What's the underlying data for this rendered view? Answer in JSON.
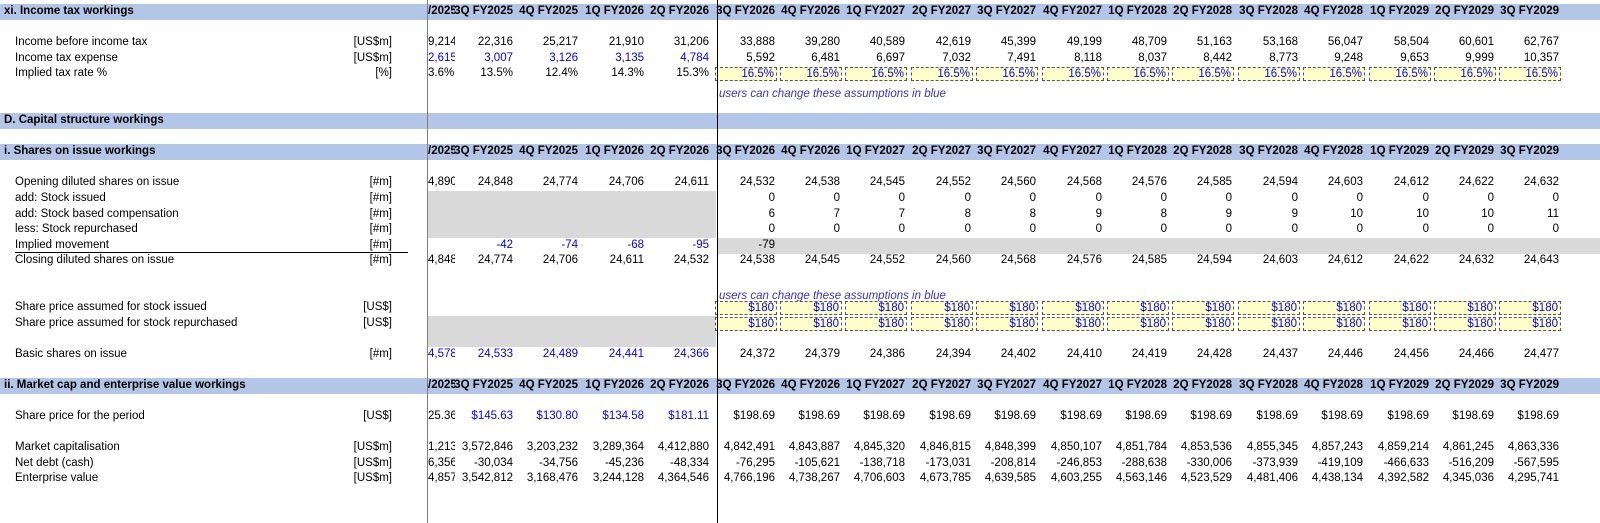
{
  "columns": [
    "3Q FY2025",
    "4Q FY2025",
    "1Q FY2026",
    "2Q FY2026",
    "3Q FY2026",
    "4Q FY2026",
    "1Q FY2027",
    "2Q FY2027",
    "3Q FY2027",
    "4Q FY2027",
    "1Q FY2028",
    "2Q FY2028",
    "3Q FY2028",
    "4Q FY2028",
    "1Q FY2029",
    "2Q FY2029",
    "3Q FY2029"
  ],
  "partial_header": "/2025",
  "note_text": "users can change these assumptions in blue",
  "sections": {
    "tax": "xi. Income tax workings",
    "capital": "D. Capital structure workings",
    "shares": "i. Shares on issue workings",
    "market": "ii. Market cap and enterprise value workings"
  },
  "rows": {
    "ibt": {
      "label": "Income before income tax",
      "unit": "[US$m]",
      "partial": "9,214",
      "values": [
        "22,316",
        "25,217",
        "21,910",
        "31,206",
        "33,888",
        "39,280",
        "40,589",
        "42,619",
        "45,399",
        "49,199",
        "48,709",
        "51,163",
        "53,168",
        "56,047",
        "58,504",
        "60,601",
        "62,767"
      ]
    },
    "tax_exp": {
      "label": "Income tax expense",
      "unit": "[US$m]",
      "partial": "2,615",
      "values": [
        "3,007",
        "3,126",
        "3,135",
        "4,784",
        "5,592",
        "6,481",
        "6,697",
        "7,032",
        "7,491",
        "8,118",
        "8,037",
        "8,442",
        "8,773",
        "9,248",
        "9,653",
        "9,999",
        "10,357"
      ]
    },
    "tax_rate": {
      "label": "Implied tax rate %",
      "unit": "[%]",
      "partial": "3.6%",
      "values": [
        "13.5%",
        "12.4%",
        "14.3%",
        "15.3%",
        "16.5%",
        "16.5%",
        "16.5%",
        "16.5%",
        "16.5%",
        "16.5%",
        "16.5%",
        "16.5%",
        "16.5%",
        "16.5%",
        "16.5%",
        "16.5%",
        "16.5%"
      ]
    },
    "open_sh": {
      "label": "Opening diluted shares on issue",
      "unit": "[#m]",
      "partial": "4,890",
      "values": [
        "24,848",
        "24,774",
        "24,706",
        "24,611",
        "24,532",
        "24,538",
        "24,545",
        "24,552",
        "24,560",
        "24,568",
        "24,576",
        "24,585",
        "24,594",
        "24,603",
        "24,612",
        "24,622",
        "24,632"
      ]
    },
    "issued": {
      "label": "add: Stock issued",
      "unit": "[#m]",
      "values": [
        "0",
        "0",
        "0",
        "0",
        "0",
        "0",
        "0",
        "0",
        "0",
        "0",
        "0",
        "0",
        "0"
      ]
    },
    "sbc": {
      "label": "add: Stock based compensation",
      "unit": "[#m]",
      "values": [
        "6",
        "7",
        "7",
        "8",
        "8",
        "9",
        "8",
        "9",
        "9",
        "10",
        "10",
        "10",
        "11"
      ]
    },
    "repurch": {
      "label": "less: Stock repurchased",
      "unit": "[#m]",
      "values": [
        "0",
        "0",
        "0",
        "0",
        "0",
        "0",
        "0",
        "0",
        "0",
        "0",
        "0",
        "0",
        "0"
      ]
    },
    "implied": {
      "label": "Implied movement",
      "unit": "[#m]",
      "values": [
        "-42",
        "-74",
        "-68",
        "-95",
        "-79"
      ]
    },
    "close_sh": {
      "label": "Closing diluted shares on issue",
      "unit": "[#m]",
      "partial": "4,848",
      "values": [
        "24,774",
        "24,706",
        "24,611",
        "24,532",
        "24,538",
        "24,545",
        "24,552",
        "24,560",
        "24,568",
        "24,576",
        "24,585",
        "24,594",
        "24,603",
        "24,612",
        "24,622",
        "24,632",
        "24,643"
      ]
    },
    "price_iss": {
      "label": "Share price assumed for stock issued",
      "unit": "[US$]",
      "values": [
        "$180",
        "$180",
        "$180",
        "$180",
        "$180",
        "$180",
        "$180",
        "$180",
        "$180",
        "$180",
        "$180",
        "$180",
        "$180"
      ]
    },
    "price_rep": {
      "label": "Share price assumed for stock repurchased",
      "unit": "[US$]",
      "values": [
        "$180",
        "$180",
        "$180",
        "$180",
        "$180",
        "$180",
        "$180",
        "$180",
        "$180",
        "$180",
        "$180",
        "$180",
        "$180"
      ]
    },
    "basic": {
      "label": "Basic shares on issue",
      "unit": "[#m]",
      "partial": "4,578",
      "values": [
        "24,533",
        "24,489",
        "24,441",
        "24,366",
        "24,372",
        "24,379",
        "24,386",
        "24,394",
        "24,402",
        "24,410",
        "24,419",
        "24,428",
        "24,437",
        "24,446",
        "24,456",
        "24,466",
        "24,477"
      ]
    },
    "sp_period": {
      "label": "Share price for the period",
      "unit": "[US$]",
      "partial": "25.36",
      "values": [
        "$145.63",
        "$130.80",
        "$134.58",
        "$181.11",
        "$198.69",
        "$198.69",
        "$198.69",
        "$198.69",
        "$198.69",
        "$198.69",
        "$198.69",
        "$198.69",
        "$198.69",
        "$198.69",
        "$198.69",
        "$198.69",
        "$198.69"
      ]
    },
    "mktcap": {
      "label": "Market capitalisation",
      "unit": "[US$m]",
      "partial": "1,213",
      "values": [
        "3,572,846",
        "3,203,232",
        "3,289,364",
        "4,412,880",
        "4,842,491",
        "4,843,887",
        "4,845,320",
        "4,846,815",
        "4,848,399",
        "4,850,107",
        "4,851,784",
        "4,853,536",
        "4,855,345",
        "4,857,243",
        "4,859,214",
        "4,861,245",
        "4,863,336"
      ]
    },
    "netdebt": {
      "label": "Net debt (cash)",
      "unit": "[US$m]",
      "partial": "6,356",
      "values": [
        "-30,034",
        "-34,756",
        "-45,236",
        "-48,334",
        "-76,295",
        "-105,621",
        "-138,718",
        "-173,031",
        "-208,814",
        "-246,853",
        "-288,638",
        "-330,006",
        "-373,939",
        "-419,109",
        "-466,633",
        "-516,209",
        "-567,595"
      ]
    },
    "ev": {
      "label": "Enterprise value",
      "unit": "[US$m]",
      "partial": "4,857",
      "values": [
        "3,542,812",
        "3,168,476",
        "3,244,128",
        "4,364,546",
        "4,766,196",
        "4,738,267",
        "4,706,603",
        "4,673,785",
        "4,639,585",
        "4,603,255",
        "4,563,146",
        "4,523,529",
        "4,481,406",
        "4,438,134",
        "4,392,582",
        "4,345,036",
        "4,295,741"
      ]
    }
  },
  "colors": {
    "header_band": "#b4c6e7",
    "input_blue": "#0000ff",
    "note_blue": "#3333cc",
    "assumption_fill": "#ffffcc",
    "grey_fill": "#d9d9d9"
  }
}
